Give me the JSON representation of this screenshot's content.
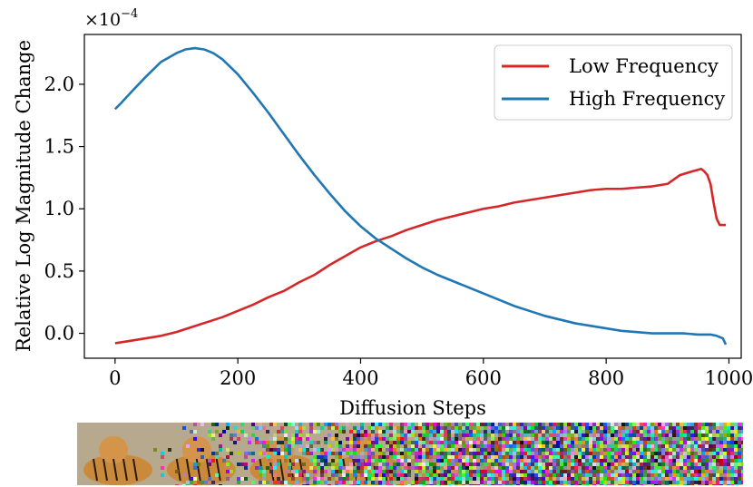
{
  "chart_data": {
    "type": "line",
    "ylabel": "Relative Log Magnitude Change",
    "xlabel": "Diffusion Steps",
    "scale_label": "×10",
    "scale_exponent": "−4",
    "xlim": [
      -50,
      1020
    ],
    "ylim": [
      -0.2,
      2.4
    ],
    "xticks": [
      0,
      200,
      400,
      600,
      800,
      1000
    ],
    "xtick_labels": [
      "0",
      "200",
      "400",
      "600",
      "800",
      "1000"
    ],
    "yticks": [
      0.0,
      0.5,
      1.0,
      1.5,
      2.0
    ],
    "ytick_labels": [
      "0.0",
      "0.5",
      "1.0",
      "1.5",
      "2.0"
    ],
    "grid": false,
    "legend_position": "top-right",
    "series": [
      {
        "name": "Low Frequency",
        "color": "#d62728",
        "x": [
          0,
          25,
          50,
          75,
          100,
          125,
          150,
          175,
          200,
          225,
          250,
          275,
          300,
          325,
          350,
          375,
          400,
          425,
          450,
          475,
          500,
          525,
          550,
          575,
          600,
          625,
          650,
          675,
          700,
          725,
          750,
          775,
          800,
          825,
          850,
          875,
          900,
          920,
          940,
          955,
          960,
          965,
          970,
          975,
          980,
          985,
          995
        ],
        "y": [
          -0.08,
          -0.06,
          -0.04,
          -0.02,
          0.01,
          0.05,
          0.09,
          0.13,
          0.18,
          0.23,
          0.29,
          0.34,
          0.41,
          0.47,
          0.55,
          0.62,
          0.69,
          0.74,
          0.78,
          0.83,
          0.87,
          0.91,
          0.94,
          0.97,
          1.0,
          1.02,
          1.05,
          1.07,
          1.09,
          1.11,
          1.13,
          1.15,
          1.16,
          1.16,
          1.17,
          1.18,
          1.2,
          1.27,
          1.3,
          1.32,
          1.3,
          1.27,
          1.2,
          1.05,
          0.92,
          0.87,
          0.87
        ]
      },
      {
        "name": "High Frequency",
        "color": "#1f77b4",
        "x": [
          0,
          10,
          25,
          50,
          75,
          100,
          115,
          130,
          145,
          160,
          175,
          200,
          225,
          250,
          275,
          300,
          325,
          350,
          375,
          400,
          425,
          450,
          475,
          500,
          525,
          550,
          575,
          600,
          625,
          650,
          675,
          700,
          725,
          750,
          775,
          800,
          825,
          850,
          875,
          900,
          925,
          950,
          970,
          980,
          990,
          995
        ],
        "y": [
          1.8,
          1.85,
          1.93,
          2.06,
          2.18,
          2.25,
          2.28,
          2.29,
          2.28,
          2.25,
          2.2,
          2.08,
          1.93,
          1.77,
          1.6,
          1.43,
          1.27,
          1.12,
          0.98,
          0.86,
          0.76,
          0.68,
          0.6,
          0.53,
          0.47,
          0.42,
          0.37,
          0.32,
          0.27,
          0.22,
          0.18,
          0.14,
          0.11,
          0.08,
          0.06,
          0.04,
          0.02,
          0.01,
          0.0,
          0.0,
          0.0,
          -0.01,
          -0.01,
          -0.02,
          -0.04,
          -0.09
        ]
      }
    ]
  }
}
